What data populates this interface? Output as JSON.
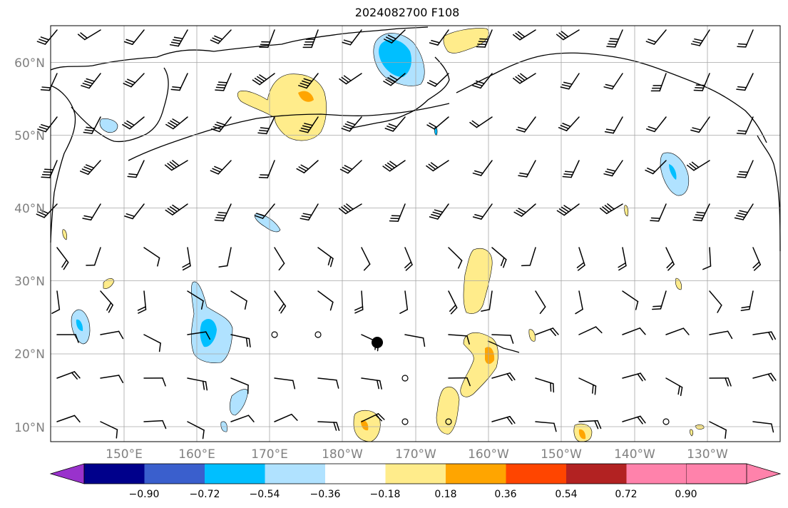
{
  "title": "2024082700 F108",
  "lat_labels": [
    "60°N",
    "50°N",
    "40°N",
    "30°N",
    "20°N",
    "10°N"
  ],
  "lon_labels": [
    "150°E",
    "160°E",
    "170°E",
    "180°W",
    "170°W",
    "160°W",
    "150°W",
    "140°W",
    "130°W"
  ],
  "colorbar": {
    "ticks": [
      "−0.90",
      "−0.72",
      "−0.54",
      "−0.36",
      "−0.18",
      "0.18",
      "0.36",
      "0.54",
      "0.72",
      "0.90"
    ],
    "colors": [
      "#9932cc",
      "#00008b",
      "#3a5fcd",
      "#00bfff",
      "#b0e2ff",
      "#ffffff",
      "#ffec8b",
      "#ffa500",
      "#ff4500",
      "#b22222",
      "#ff82ab"
    ]
  }
}
